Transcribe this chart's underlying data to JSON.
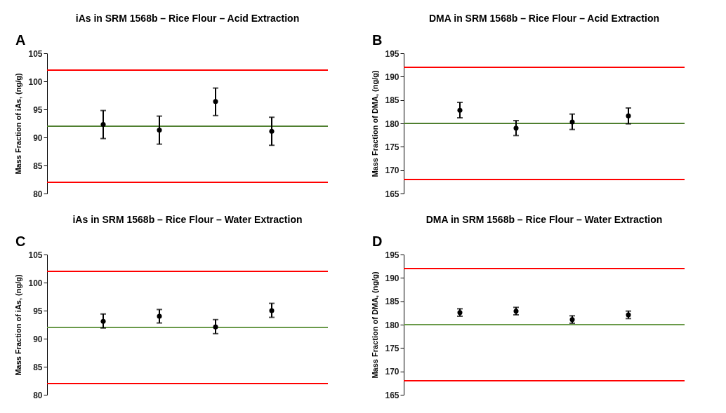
{
  "chart_data": [
    {
      "type": "scatter",
      "title": "iAs in SRM 1568b – Rice Flour – Acid Extraction",
      "ylabel": "Mass Fraction of iAs, (ng/g)",
      "annotations": [
        "A"
      ],
      "categories": [
        null,
        null,
        null,
        null
      ],
      "series": [
        {
          "color": "#000000",
          "values": [
            92.3,
            91.3,
            96.4,
            91.1
          ],
          "errors": [
            [
              89.8,
              94.8
            ],
            [
              88.8,
              93.8
            ],
            [
              93.9,
              98.8
            ],
            [
              88.6,
              93.6
            ]
          ]
        }
      ],
      "ylim": [
        80,
        105
      ],
      "yticks": [
        80,
        85,
        90,
        95,
        100,
        105
      ],
      "marker": "circle",
      "grid": false,
      "ref_lines": [
        {
          "axis": "y",
          "value": 102,
          "color": "#ff0000"
        },
        {
          "axis": "y",
          "value": 82,
          "color": "#ff0000"
        },
        {
          "axis": "y",
          "value": 92,
          "color": "#4f7f2f"
        }
      ]
    },
    {
      "type": "scatter",
      "title": "DMA in SRM 1568b – Rice Flour – Acid Extraction",
      "ylabel": "Mass Fraction of DMA, (ng/g)",
      "annotations": [
        "B"
      ],
      "categories": [
        null,
        null,
        null,
        null
      ],
      "series": [
        {
          "color": "#000000",
          "values": [
            182.8,
            179.0,
            180.3,
            181.6
          ],
          "errors": [
            [
              181.2,
              184.5
            ],
            [
              177.4,
              180.6
            ],
            [
              178.7,
              182.0
            ],
            [
              179.9,
              183.3
            ]
          ]
        }
      ],
      "ylim": [
        165,
        195
      ],
      "yticks": [
        165,
        170,
        175,
        180,
        185,
        190,
        195
      ],
      "marker": "circle",
      "grid": false,
      "ref_lines": [
        {
          "axis": "y",
          "value": 192,
          "color": "#ff0000"
        },
        {
          "axis": "y",
          "value": 168,
          "color": "#ff0000"
        },
        {
          "axis": "y",
          "value": 180,
          "color": "#4f7f2f"
        }
      ]
    },
    {
      "type": "scatter",
      "title": "iAs in SRM 1568b – Rice Flour – Water Extraction",
      "ylabel": "Mass Fraction of iAs, (ng/g)",
      "annotations": [
        "C"
      ],
      "categories": [
        null,
        null,
        null,
        null
      ],
      "series": [
        {
          "color": "#000000",
          "values": [
            93.1,
            94.0,
            92.1,
            95.0
          ],
          "errors": [
            [
              91.9,
              94.4
            ],
            [
              92.8,
              95.2
            ],
            [
              90.9,
              93.4
            ],
            [
              93.8,
              96.3
            ]
          ]
        }
      ],
      "ylim": [
        80,
        105
      ],
      "yticks": [
        80,
        85,
        90,
        95,
        100,
        105
      ],
      "marker": "circle",
      "grid": false,
      "ref_lines": [
        {
          "axis": "y",
          "value": 102,
          "color": "#ff0000"
        },
        {
          "axis": "y",
          "value": 82,
          "color": "#ff0000"
        },
        {
          "axis": "y",
          "value": 92,
          "color": "#6a9a4a"
        }
      ]
    },
    {
      "type": "scatter",
      "title": "DMA in SRM 1568b – Rice Flour – Water Extraction",
      "ylabel": "Mass Fraction of DMA, (ng/g)",
      "annotations": [
        "D"
      ],
      "categories": [
        null,
        null,
        null,
        null
      ],
      "series": [
        {
          "color": "#000000",
          "values": [
            182.6,
            182.9,
            181.1,
            182.1
          ],
          "errors": [
            [
              181.8,
              183.4
            ],
            [
              182.1,
              183.7
            ],
            [
              180.3,
              181.9
            ],
            [
              181.3,
              182.9
            ]
          ]
        }
      ],
      "ylim": [
        165,
        195
      ],
      "yticks": [
        165,
        170,
        175,
        180,
        185,
        190,
        195
      ],
      "marker": "circle",
      "grid": false,
      "ref_lines": [
        {
          "axis": "y",
          "value": 192,
          "color": "#ff0000"
        },
        {
          "axis": "y",
          "value": 168,
          "color": "#ff0000"
        },
        {
          "axis": "y",
          "value": 180,
          "color": "#6a9a4a"
        }
      ]
    }
  ]
}
